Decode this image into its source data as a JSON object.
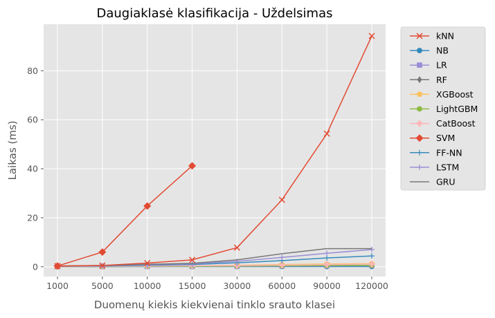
{
  "chart_data": {
    "type": "line",
    "title": "Daugiaklasė klasifikacija - Uždelsimas",
    "xlabel": "Duomenų kiekis kiekvienai tinklo srauto klasei",
    "ylabel": "Laikas (ms)",
    "categories": [
      "1000",
      "5000",
      "10000",
      "15000",
      "30000",
      "60000",
      "90000",
      "120000"
    ],
    "ylim": [
      -4,
      99
    ],
    "yticks": [
      0,
      20,
      40,
      60,
      80
    ],
    "grid": true,
    "legend_position": "outside-right",
    "series": [
      {
        "name": "kNN",
        "color": "#E24A33",
        "marker": "x",
        "values": [
          0.3,
          0.5,
          1.5,
          2.8,
          7.8,
          27.3,
          54.3,
          94.2
        ]
      },
      {
        "name": "NB",
        "color": "#348ABD",
        "marker": "circle",
        "values": [
          0.05,
          0.07,
          0.08,
          0.1,
          0.1,
          0.1,
          0.1,
          0.1
        ]
      },
      {
        "name": "LR",
        "color": "#988ED5",
        "marker": "square",
        "values": [
          0.05,
          0.08,
          0.1,
          0.15,
          0.2,
          0.3,
          0.4,
          0.5
        ]
      },
      {
        "name": "RF",
        "color": "#777777",
        "marker": "diamond",
        "values": [
          0.1,
          0.1,
          0.2,
          0.2,
          0.3,
          0.4,
          0.5,
          0.6
        ]
      },
      {
        "name": "XGBoost",
        "color": "#FBC15E",
        "marker": "pentagon",
        "values": [
          0.1,
          0.2,
          0.3,
          0.4,
          0.6,
          0.9,
          1.1,
          1.3
        ]
      },
      {
        "name": "LightGBM",
        "color": "#8EBA42",
        "marker": "hexagon",
        "values": [
          0.1,
          0.1,
          0.2,
          0.2,
          0.3,
          0.4,
          0.5,
          0.6
        ]
      },
      {
        "name": "CatBoost",
        "color": "#FFB5B8",
        "marker": "plus-filled",
        "values": [
          0.1,
          0.2,
          0.3,
          0.4,
          0.5,
          0.7,
          0.9,
          1.1
        ]
      },
      {
        "name": "SVM",
        "color": "#E24A33",
        "marker": "big-diamond",
        "values": [
          0.3,
          6.0,
          24.8,
          41.2,
          null,
          null,
          null,
          null
        ]
      },
      {
        "name": "FF-NN",
        "color": "#348ABD",
        "marker": "thin-plus",
        "values": [
          0.2,
          0.3,
          0.6,
          0.9,
          1.6,
          2.5,
          3.6,
          4.4
        ]
      },
      {
        "name": "LSTM",
        "color": "#988ED5",
        "marker": "thin-plus",
        "values": [
          0.2,
          0.4,
          0.8,
          1.2,
          2.2,
          3.8,
          5.5,
          7.0
        ]
      },
      {
        "name": "GRU",
        "color": "#777777",
        "marker": "none",
        "values": [
          0.3,
          0.5,
          1.0,
          1.4,
          2.8,
          5.3,
          7.4,
          7.4
        ]
      }
    ]
  }
}
